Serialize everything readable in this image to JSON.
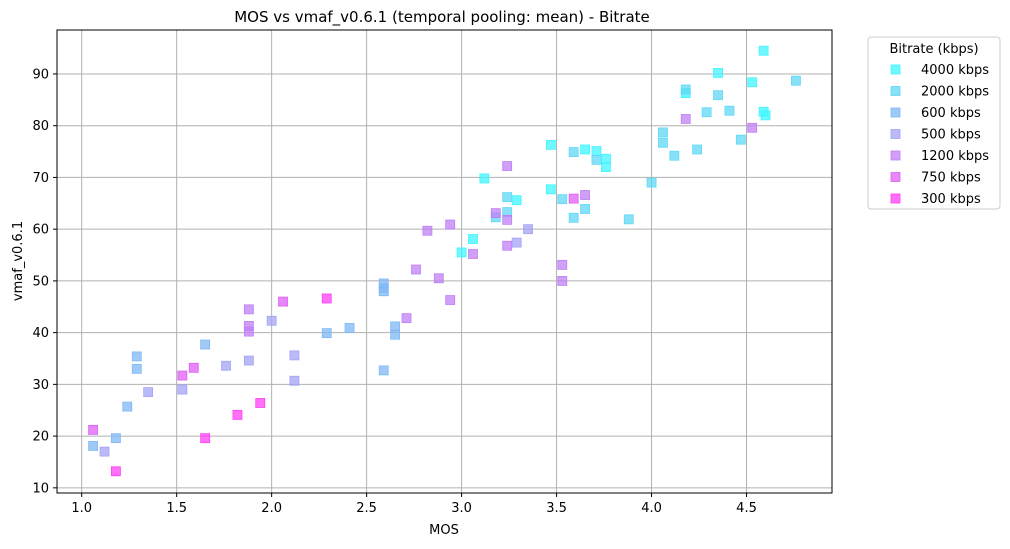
{
  "chart_data": {
    "type": "scatter",
    "title": "MOS vs vmaf_v0.6.1 (temporal pooling: mean) - Bitrate",
    "xlabel": "MOS",
    "ylabel": "vmaf_v0.6.1",
    "xlim": [
      0.87,
      4.95
    ],
    "ylim": [
      9.0,
      98.5
    ],
    "xticks": [
      "1.0",
      "1.5",
      "2.0",
      "2.5",
      "3.0",
      "3.5",
      "4.0",
      "4.5"
    ],
    "yticks": [
      "10",
      "20",
      "30",
      "40",
      "50",
      "60",
      "70",
      "80",
      "90"
    ],
    "grid": true,
    "marker": "square",
    "legend": {
      "title": "Bitrate (kbps)",
      "placement": "outside-top-right"
    },
    "series": [
      {
        "name": "4000 kbps",
        "color": "#3ff5ff",
        "points": [
          [
            4.59,
            94.5
          ],
          [
            4.35,
            90.2
          ],
          [
            4.53,
            88.4
          ],
          [
            4.18,
            86.3
          ],
          [
            4.6,
            82.0
          ],
          [
            4.59,
            82.7
          ],
          [
            3.71,
            75.1
          ],
          [
            3.47,
            76.3
          ],
          [
            3.65,
            75.4
          ],
          [
            3.76,
            73.6
          ],
          [
            3.76,
            72.0
          ],
          [
            3.47,
            67.7
          ],
          [
            3.12,
            69.8
          ],
          [
            3.29,
            65.6
          ],
          [
            3.06,
            58.1
          ],
          [
            3.0,
            55.5
          ]
        ]
      },
      {
        "name": "2000 kbps",
        "color": "#5fd8f5",
        "points": [
          [
            4.76,
            88.7
          ],
          [
            4.18,
            87.0
          ],
          [
            4.35,
            85.9
          ],
          [
            4.29,
            82.6
          ],
          [
            4.41,
            82.9
          ],
          [
            4.06,
            78.7
          ],
          [
            4.47,
            77.3
          ],
          [
            4.06,
            76.7
          ],
          [
            4.24,
            75.4
          ],
          [
            4.12,
            74.2
          ],
          [
            3.59,
            74.9
          ],
          [
            3.71,
            73.4
          ],
          [
            4.0,
            69.0
          ],
          [
            3.24,
            66.2
          ],
          [
            3.53,
            65.8
          ],
          [
            3.65,
            63.9
          ],
          [
            3.18,
            62.3
          ],
          [
            3.59,
            62.2
          ],
          [
            3.88,
            61.9
          ],
          [
            3.24,
            63.3
          ]
        ]
      },
      {
        "name": "600 kbps",
        "color": "#7fb8f5",
        "points": [
          [
            2.59,
            49.5
          ],
          [
            2.59,
            48.6
          ],
          [
            2.59,
            48.0
          ],
          [
            2.65,
            41.2
          ],
          [
            2.41,
            40.9
          ],
          [
            2.29,
            39.9
          ],
          [
            2.65,
            39.6
          ],
          [
            2.59,
            32.7
          ],
          [
            1.65,
            37.7
          ],
          [
            1.29,
            35.4
          ],
          [
            1.29,
            33.0
          ],
          [
            1.24,
            25.7
          ],
          [
            1.18,
            19.6
          ],
          [
            1.06,
            18.1
          ]
        ]
      },
      {
        "name": "500 kbps",
        "color": "#a3a3f5",
        "points": [
          [
            3.35,
            60.0
          ],
          [
            3.29,
            57.4
          ],
          [
            2.0,
            42.3
          ],
          [
            2.12,
            35.6
          ],
          [
            1.88,
            34.6
          ],
          [
            1.76,
            33.6
          ],
          [
            2.12,
            30.7
          ],
          [
            1.53,
            29.0
          ],
          [
            1.35,
            28.5
          ],
          [
            1.12,
            17.0
          ]
        ]
      },
      {
        "name": "1200 kbps",
        "color": "#c07ff5",
        "points": [
          [
            4.53,
            79.6
          ],
          [
            4.18,
            81.3
          ],
          [
            3.24,
            72.2
          ],
          [
            3.65,
            66.6
          ],
          [
            3.18,
            63.1
          ],
          [
            3.24,
            61.8
          ],
          [
            2.94,
            60.9
          ],
          [
            2.82,
            59.7
          ],
          [
            3.06,
            55.2
          ],
          [
            3.24,
            56.8
          ],
          [
            3.53,
            53.1
          ],
          [
            2.76,
            52.2
          ],
          [
            2.88,
            50.5
          ],
          [
            3.53,
            50.0
          ],
          [
            2.94,
            46.3
          ],
          [
            2.71,
            42.8
          ],
          [
            1.88,
            44.5
          ],
          [
            1.88,
            41.3
          ],
          [
            1.88,
            40.2
          ]
        ]
      },
      {
        "name": "750 kbps",
        "color": "#df5ff5",
        "points": [
          [
            3.59,
            65.9
          ],
          [
            2.06,
            46.0
          ],
          [
            1.59,
            33.2
          ],
          [
            1.53,
            31.7
          ],
          [
            1.06,
            21.2
          ]
        ]
      },
      {
        "name": "300 kbps",
        "color": "#ff3ff5",
        "points": [
          [
            2.29,
            46.6
          ],
          [
            1.94,
            26.4
          ],
          [
            1.82,
            24.1
          ],
          [
            1.65,
            19.6
          ],
          [
            1.18,
            13.2
          ]
        ]
      }
    ]
  }
}
